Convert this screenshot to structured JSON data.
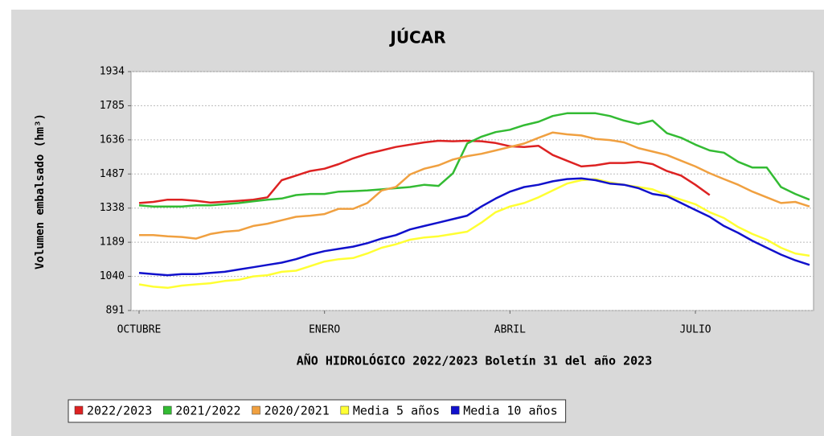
{
  "chart_data": {
    "type": "line",
    "title": "JÚCAR",
    "y_label": "Volumen embalsado (hm³)",
    "x_label": "AÑO HIDROLÓGICO 2022/2023 Boletín 31 del año 2023",
    "categories": [
      "OCTUBRE",
      null,
      null,
      null,
      null,
      null,
      null,
      null,
      null,
      null,
      null,
      null,
      null,
      "ENERO",
      null,
      null,
      null,
      null,
      null,
      null,
      null,
      null,
      null,
      null,
      null,
      null,
      "ABRIL",
      null,
      null,
      null,
      null,
      null,
      null,
      null,
      null,
      null,
      null,
      null,
      null,
      "JULIO",
      null,
      null,
      null,
      null,
      null,
      null,
      null,
      null
    ],
    "ylim": [
      891,
      1934
    ],
    "yticks": [
      891,
      1040,
      1189,
      1338,
      1487,
      1636,
      1785,
      1934
    ],
    "grid": true,
    "legend": "bottom",
    "series": [
      {
        "name": "2022/2023",
        "color": "#dd2222",
        "values": [
          1360,
          1365,
          1375,
          1375,
          1370,
          1362,
          1366,
          1370,
          1375,
          1385,
          1460,
          1480,
          1500,
          1510,
          1530,
          1555,
          1575,
          1590,
          1605,
          1615,
          1625,
          1632,
          1630,
          1632,
          1630,
          1622,
          1608,
          1605,
          1610,
          1570,
          1545,
          1520,
          1525,
          1535,
          1535,
          1540,
          1530,
          1500,
          1480,
          1440,
          1395,
          null,
          null,
          null,
          null,
          null,
          null,
          null
        ]
      },
      {
        "name": "2021/2022",
        "color": "#33bb33",
        "values": [
          1350,
          1345,
          1345,
          1345,
          1350,
          1350,
          1355,
          1360,
          1368,
          1375,
          1380,
          1395,
          1400,
          1400,
          1410,
          1412,
          1415,
          1420,
          1425,
          1430,
          1440,
          1435,
          1490,
          1620,
          1650,
          1670,
          1680,
          1700,
          1715,
          1740,
          1752,
          1752,
          1752,
          1740,
          1720,
          1705,
          1720,
          1665,
          1645,
          1615,
          1590,
          1580,
          1540,
          1515,
          1515,
          1430,
          1400,
          1375
        ]
      },
      {
        "name": "2020/2021",
        "color": "#f0a040",
        "values": [
          1220,
          1220,
          1215,
          1212,
          1205,
          1225,
          1235,
          1240,
          1260,
          1270,
          1285,
          1300,
          1305,
          1312,
          1335,
          1335,
          1360,
          1415,
          1430,
          1485,
          1510,
          1525,
          1550,
          1565,
          1575,
          1590,
          1605,
          1620,
          1645,
          1668,
          1660,
          1655,
          1640,
          1635,
          1625,
          1600,
          1585,
          1570,
          1545,
          1520,
          1490,
          1465,
          1440,
          1410,
          1385,
          1360,
          1365,
          1345
        ]
      },
      {
        "name": "Media 5 años",
        "color": "#ffff33",
        "values": [
          1005,
          995,
          990,
          1000,
          1005,
          1010,
          1020,
          1025,
          1040,
          1045,
          1060,
          1065,
          1085,
          1105,
          1115,
          1120,
          1140,
          1165,
          1180,
          1200,
          1210,
          1215,
          1225,
          1235,
          1275,
          1320,
          1345,
          1360,
          1385,
          1415,
          1445,
          1460,
          1465,
          1450,
          1440,
          1430,
          1420,
          1395,
          1375,
          1355,
          1320,
          1295,
          1255,
          1225,
          1200,
          1165,
          1140,
          1130
        ]
      },
      {
        "name": "Media 10 años",
        "color": "#1111cc",
        "values": [
          1055,
          1050,
          1045,
          1050,
          1050,
          1055,
          1060,
          1070,
          1080,
          1090,
          1100,
          1115,
          1135,
          1150,
          1160,
          1170,
          1185,
          1205,
          1220,
          1245,
          1260,
          1275,
          1290,
          1305,
          1345,
          1380,
          1410,
          1430,
          1440,
          1455,
          1465,
          1468,
          1460,
          1445,
          1440,
          1425,
          1400,
          1390,
          1360,
          1330,
          1300,
          1260,
          1230,
          1195,
          1165,
          1135,
          1110,
          1090
        ]
      }
    ]
  }
}
